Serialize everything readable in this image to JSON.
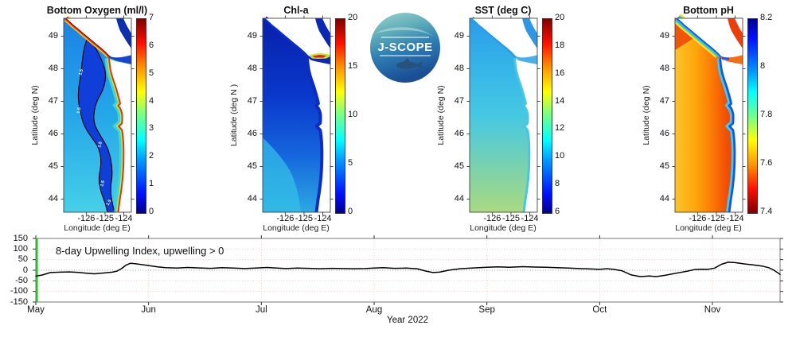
{
  "logo": {
    "text": "J-SCOPE"
  },
  "colors": {
    "marker_green": "#00dd00",
    "curve": "#000000",
    "grid_pink": "#f2c4c4",
    "zero_line": "#9a9a9a"
  },
  "chart_data": [
    {
      "type": "heatmap",
      "title": "Bottom Oxygen (ml/l)",
      "xlabel": "Longitude (deg E)",
      "ylabel": "Latitude (deg N)",
      "xlim": [
        -127.2,
        -123.6
      ],
      "ylim": [
        43.6,
        49.55
      ],
      "x_ticks": [
        -126,
        -125,
        -124
      ],
      "y_ticks": [
        49,
        48,
        47,
        46,
        45,
        44
      ],
      "colorbar": {
        "range": [
          0,
          7
        ],
        "colormap": "jet",
        "ticks": [
          {
            "v": 7,
            "t": "7"
          },
          {
            "v": 6,
            "t": "6"
          },
          {
            "v": 5,
            "t": "5"
          },
          {
            "v": 4,
            "t": "4"
          },
          {
            "v": 3,
            "t": "3"
          },
          {
            "v": 2,
            "t": "2"
          },
          {
            "v": 1,
            "t": "1"
          },
          {
            "v": 0,
            "t": "0"
          }
        ]
      },
      "contour_level": "1.5",
      "pattern": "hypoxic pool (<1.5 ml/l, dark blue) over mid-shelf outlined in black; high oxygen (red, 6-7) band right at the coast and along Vancouver Island"
    },
    {
      "type": "heatmap",
      "title": "Chl-a",
      "xlabel": "Longitude (deg E)",
      "ylabel": "Latitude (deg N )",
      "xlim": [
        -127.2,
        -123.6
      ],
      "ylim": [
        43.6,
        49.55
      ],
      "x_ticks": [
        -126,
        -125,
        -124
      ],
      "y_ticks": [
        49,
        48,
        47,
        46,
        45,
        44
      ],
      "colorbar": {
        "range": [
          0,
          20
        ],
        "colormap": "jet",
        "ticks": [
          {
            "v": 20,
            "t": "20"
          },
          {
            "v": 15,
            "t": "15"
          },
          {
            "v": 10,
            "t": "10"
          },
          {
            "v": 5,
            "t": "5"
          },
          {
            "v": 0,
            "t": "0"
          }
        ]
      },
      "pattern": "low chlorophyll offshore (dark blue 0-3), moderate (cyan ~5) in the south, high bloom streak (red ~15-20) in Strait of Juan de Fuca near 48.3N"
    },
    {
      "type": "heatmap",
      "title": "SST (deg C)",
      "xlabel": "Longitude (deg E)",
      "ylabel": "Latitude (deg N)",
      "xlim": [
        -127.2,
        -123.6
      ],
      "ylim": [
        43.6,
        49.55
      ],
      "x_ticks": [
        -126,
        -125,
        -124
      ],
      "y_ticks": [
        49,
        48,
        47,
        46,
        45,
        44
      ],
      "colorbar": {
        "range": [
          6,
          20
        ],
        "colormap": "jet",
        "ticks": [
          {
            "v": 20,
            "t": "20"
          },
          {
            "v": 18,
            "t": "18"
          },
          {
            "v": 16,
            "t": "16"
          },
          {
            "v": 14,
            "t": "14"
          },
          {
            "v": 12,
            "t": "12"
          },
          {
            "v": 10,
            "t": "10"
          },
          {
            "v": 8,
            "t": "8"
          },
          {
            "v": 6,
            "t": "6"
          }
        ]
      },
      "pattern": "cool (blue ~9-10 C) in the north, warming southward to green-yellow ~13-14 C offshore Oregon"
    },
    {
      "type": "heatmap",
      "title": "Bottom pH",
      "xlabel": "Longitude (deg E)",
      "ylabel": "Latitude (deg N)",
      "xlim": [
        -127.2,
        -123.6
      ],
      "ylim": [
        43.6,
        49.55
      ],
      "x_ticks": [
        -126,
        -125,
        -124
      ],
      "y_ticks": [
        49,
        48,
        47,
        46,
        45,
        44
      ],
      "colorbar": {
        "range": [
          7.4,
          8.2
        ],
        "colormap": "jet_reversed",
        "ticks": [
          {
            "v": 8.2,
            "t": "8.2"
          },
          {
            "v": 8,
            "t": "8"
          },
          {
            "v": 7.8,
            "t": "7.8"
          },
          {
            "v": 7.6,
            "t": "7.6"
          },
          {
            "v": 7.4,
            "t": "7.4"
          }
        ]
      },
      "pattern": "low pH (orange-red 7.5-7.65) across the shelf, yellow ~7.7 far offshore, high pH band (blue ~8.0) hugging the coast and Vancouver Island"
    },
    {
      "type": "line",
      "annotation": "8-day Upwelling Index, upwelling > 0",
      "xlabel": "Year 2022",
      "x_unit": "months since 2022-05-01",
      "xlim": [
        0,
        6.6
      ],
      "x_tick_values": [
        0,
        1,
        2,
        3,
        4,
        5,
        6
      ],
      "x_tick_labels": [
        "May",
        "Jun",
        "Jul",
        "Aug",
        "Sep",
        "Oct",
        "Nov"
      ],
      "ylim": [
        -150,
        150
      ],
      "y_ticks": [
        {
          "v": 150,
          "t": "150"
        },
        {
          "v": 100,
          "t": "100"
        },
        {
          "v": 50,
          "t": "50"
        },
        {
          "v": 0,
          "t": "0"
        },
        {
          "v": -50,
          "t": "-50"
        },
        {
          "v": -100,
          "t": "-100"
        },
        {
          "v": -150,
          "t": "-150"
        }
      ],
      "grid": "dotted pink vertical at month starts, dotted pink horizontal every 50, dotted gray zero line",
      "marker_line": {
        "x": 0.01,
        "color": "#00dd00"
      },
      "series": [
        {
          "name": "8-day Upwelling Index",
          "points": [
            [
              0.0,
              -28
            ],
            [
              0.06,
              -22
            ],
            [
              0.13,
              -11
            ],
            [
              0.22,
              -9
            ],
            [
              0.3,
              -8
            ],
            [
              0.38,
              -10
            ],
            [
              0.45,
              -14
            ],
            [
              0.52,
              -17
            ],
            [
              0.6,
              -13
            ],
            [
              0.68,
              -9
            ],
            [
              0.72,
              -4
            ],
            [
              0.76,
              8
            ],
            [
              0.8,
              24
            ],
            [
              0.84,
              33
            ],
            [
              0.88,
              31
            ],
            [
              0.95,
              26
            ],
            [
              1.0,
              22
            ],
            [
              1.08,
              16
            ],
            [
              1.15,
              12
            ],
            [
              1.25,
              10
            ],
            [
              1.35,
              13
            ],
            [
              1.45,
              11
            ],
            [
              1.55,
              9
            ],
            [
              1.65,
              12
            ],
            [
              1.75,
              10
            ],
            [
              1.85,
              8
            ],
            [
              1.95,
              10
            ],
            [
              2.05,
              13
            ],
            [
              2.12,
              11
            ],
            [
              2.22,
              8
            ],
            [
              2.32,
              10
            ],
            [
              2.42,
              9
            ],
            [
              2.52,
              7
            ],
            [
              2.62,
              9
            ],
            [
              2.72,
              8
            ],
            [
              2.82,
              7
            ],
            [
              2.92,
              8
            ],
            [
              3.0,
              10
            ],
            [
              3.08,
              12
            ],
            [
              3.18,
              9
            ],
            [
              3.28,
              10
            ],
            [
              3.38,
              7
            ],
            [
              3.46,
              -4
            ],
            [
              3.52,
              -11
            ],
            [
              3.58,
              -9
            ],
            [
              3.66,
              0
            ],
            [
              3.76,
              7
            ],
            [
              3.88,
              11
            ],
            [
              4.0,
              14
            ],
            [
              4.1,
              16
            ],
            [
              4.2,
              14
            ],
            [
              4.32,
              17
            ],
            [
              4.42,
              15
            ],
            [
              4.52,
              14
            ],
            [
              4.62,
              12
            ],
            [
              4.72,
              10
            ],
            [
              4.82,
              8
            ],
            [
              4.92,
              6
            ],
            [
              5.0,
              4
            ],
            [
              5.06,
              7
            ],
            [
              5.12,
              5
            ],
            [
              5.2,
              -3
            ],
            [
              5.28,
              -22
            ],
            [
              5.36,
              -30
            ],
            [
              5.44,
              -27
            ],
            [
              5.5,
              -30
            ],
            [
              5.58,
              -24
            ],
            [
              5.68,
              -14
            ],
            [
              5.78,
              -4
            ],
            [
              5.84,
              3
            ],
            [
              5.9,
              5
            ],
            [
              5.96,
              4
            ],
            [
              6.02,
              10
            ],
            [
              6.08,
              28
            ],
            [
              6.14,
              38
            ],
            [
              6.2,
              36
            ],
            [
              6.28,
              30
            ],
            [
              6.36,
              25
            ],
            [
              6.44,
              20
            ],
            [
              6.5,
              12
            ],
            [
              6.54,
              2
            ],
            [
              6.58,
              -12
            ],
            [
              6.6,
              -20
            ]
          ]
        }
      ]
    }
  ]
}
